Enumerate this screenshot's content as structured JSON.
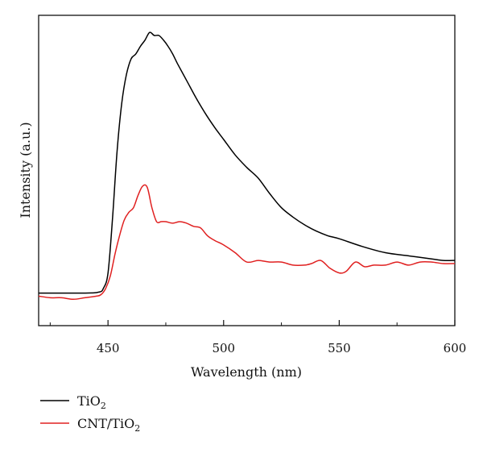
{
  "chart_data": {
    "type": "line",
    "xlabel": "Wavelength (nm)",
    "ylabel": "Intensity (a.u.)",
    "xlim": [
      420,
      600
    ],
    "ylim": [
      0,
      100
    ],
    "x_ticks_major": [
      450,
      500,
      550,
      600
    ],
    "x_ticks_minor": [
      425,
      475,
      525,
      575
    ],
    "y_ticks_shown": false,
    "grid": false,
    "legend_position": "bottom-left, below plot",
    "series": [
      {
        "name": "TiO2",
        "name_main": "TiO",
        "name_sub": "2",
        "color": "#000000",
        "x": [
          420,
          440,
          446,
          448,
          450,
          452,
          454,
          456,
          458,
          460,
          462,
          464,
          466,
          468,
          470,
          472,
          474,
          476,
          478,
          480,
          484,
          488,
          492,
          496,
          500,
          505,
          510,
          515,
          520,
          525,
          530,
          535,
          540,
          545,
          550,
          560,
          570,
          580,
          590,
          595,
          600
        ],
        "y": [
          10.5,
          10.5,
          10.8,
          12,
          17,
          35,
          57,
          72,
          81,
          86,
          87.5,
          90,
          92,
          94.5,
          93.5,
          93.5,
          92,
          90,
          87.5,
          84.5,
          79,
          73.5,
          68.5,
          64,
          60,
          55,
          51,
          47.5,
          42.5,
          38,
          35,
          32.5,
          30.5,
          29,
          28,
          25.5,
          23.5,
          22.5,
          21.5,
          21,
          21
        ]
      },
      {
        "name": "CNT/TiO2",
        "name_main": "CNT/TiO",
        "name_sub": "2",
        "color": "#e02020",
        "x": [
          420,
          425,
          430,
          435,
          440,
          445,
          447,
          449,
          451,
          453,
          455,
          457,
          459,
          461,
          463,
          465,
          467,
          469,
          471,
          473,
          475,
          478,
          481,
          484,
          487,
          490,
          493,
          496,
          500,
          505,
          510,
          515,
          520,
          525,
          530,
          535,
          538,
          542,
          546,
          550,
          553,
          557,
          561,
          565,
          570,
          575,
          580,
          585,
          590,
          595,
          600
        ],
        "y": [
          9.5,
          9,
          9,
          8.5,
          9,
          9.5,
          10,
          12,
          16,
          23,
          29,
          34,
          36.5,
          38,
          42,
          45,
          44.5,
          38,
          33.5,
          33.5,
          33.5,
          33,
          33.5,
          33,
          32,
          31.5,
          29,
          27.5,
          26,
          23.5,
          20.5,
          21,
          20.5,
          20.5,
          19.5,
          19.5,
          20,
          21,
          18.5,
          17,
          17.5,
          20.5,
          19,
          19.5,
          19.5,
          20.5,
          19.5,
          20.5,
          20.5,
          20,
          20
        ]
      }
    ]
  }
}
